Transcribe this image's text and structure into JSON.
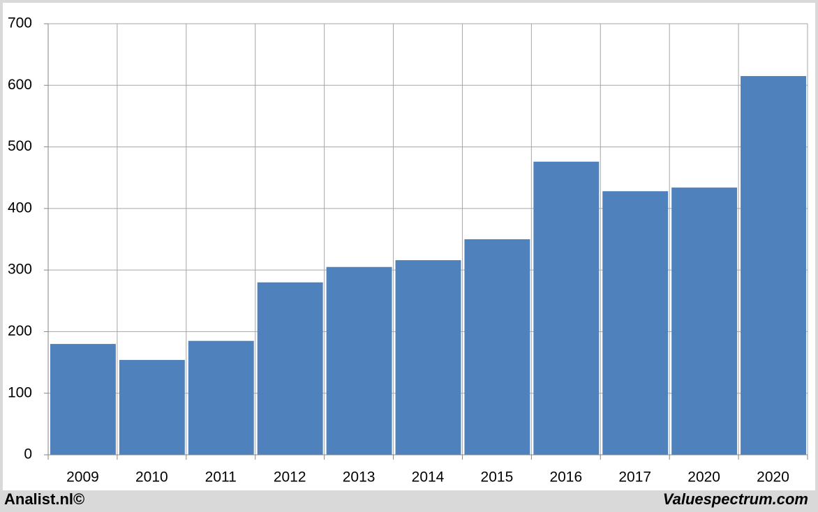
{
  "chart_data": {
    "type": "bar",
    "categories": [
      "2009",
      "2010",
      "2011",
      "2012",
      "2013",
      "2014",
      "2015",
      "2016",
      "2017",
      "2020",
      "2020"
    ],
    "values": [
      180,
      154,
      185,
      280,
      305,
      316,
      350,
      476,
      428,
      434,
      615
    ],
    "color": "#4f81bd",
    "ylim": [
      0,
      700
    ],
    "yticks": [
      0,
      100,
      200,
      300,
      400,
      500,
      600,
      700
    ],
    "grid": true,
    "annotations": [
      "Analist.nl©",
      "Valuespectrum.com"
    ]
  }
}
